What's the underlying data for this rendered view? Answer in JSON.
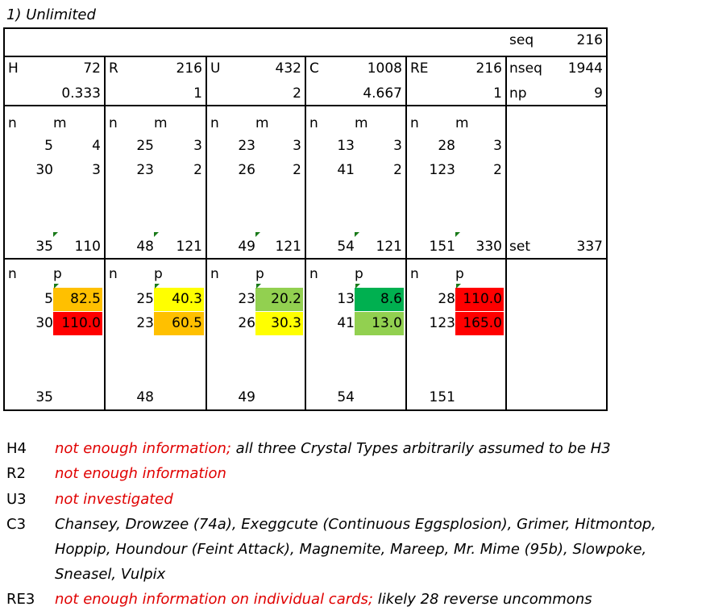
{
  "title": "1) Unlimited",
  "header": {
    "seq_label": "seq",
    "seq_value": "216",
    "nseq_label": "nseq",
    "nseq_value": "1944",
    "np_label": "np",
    "np_value": "9",
    "groups": [
      {
        "label": "H",
        "count": "72",
        "ratio": "0.333"
      },
      {
        "label": "R",
        "count": "216",
        "ratio": "1"
      },
      {
        "label": "U",
        "count": "432",
        "ratio": "2"
      },
      {
        "label": "C",
        "count": "1008",
        "ratio": "4.667"
      },
      {
        "label": "RE",
        "count": "216",
        "ratio": "1"
      }
    ]
  },
  "m_section": {
    "n_header": "n",
    "m_header": "m",
    "set_label": "set",
    "set_value": "337",
    "groups": [
      {
        "rows": [
          [
            "5",
            "4"
          ],
          [
            "30",
            "3"
          ]
        ],
        "total_n": "35",
        "total_m": "110"
      },
      {
        "rows": [
          [
            "25",
            "3"
          ],
          [
            "23",
            "2"
          ]
        ],
        "total_n": "48",
        "total_m": "121"
      },
      {
        "rows": [
          [
            "23",
            "3"
          ],
          [
            "26",
            "2"
          ]
        ],
        "total_n": "49",
        "total_m": "121"
      },
      {
        "rows": [
          [
            "13",
            "3"
          ],
          [
            "41",
            "2"
          ]
        ],
        "total_n": "54",
        "total_m": "121"
      },
      {
        "rows": [
          [
            "28",
            "3"
          ],
          [
            "123",
            "2"
          ]
        ],
        "total_n": "151",
        "total_m": "330"
      }
    ]
  },
  "p_section": {
    "n_header": "n",
    "p_header": "p",
    "groups": [
      {
        "rows": [
          [
            "5",
            "82.5",
            "#ffc000"
          ],
          [
            "30",
            "110.0",
            "#ff0000"
          ]
        ],
        "total_n": "35"
      },
      {
        "rows": [
          [
            "25",
            "40.3",
            "#ffff00"
          ],
          [
            "23",
            "60.5",
            "#ffc000"
          ]
        ],
        "total_n": "48"
      },
      {
        "rows": [
          [
            "23",
            "20.2",
            "#92d050"
          ],
          [
            "26",
            "30.3",
            "#ffff00"
          ]
        ],
        "total_n": "49"
      },
      {
        "rows": [
          [
            "13",
            "8.6",
            "#00b050"
          ],
          [
            "41",
            "13.0",
            "#92d050"
          ]
        ],
        "total_n": "54"
      },
      {
        "rows": [
          [
            "28",
            "110.0",
            "#ff0000"
          ],
          [
            "123",
            "165.0",
            "#ff0000"
          ]
        ],
        "total_n": "151"
      }
    ]
  },
  "notes": [
    {
      "key": "H4",
      "red": "not enough information;",
      "black": "all three Crystal Types arbitrarily assumed to be H3"
    },
    {
      "key": "R2",
      "red": "not enough information",
      "black": ""
    },
    {
      "key": "U3",
      "red": "not investigated",
      "black": ""
    },
    {
      "key": "C3",
      "red": "",
      "black": "Chansey, Drowzee (74a), Exeggcute (Continuous Eggsplosion), Grimer, Hitmontop,",
      "black2": "Hoppip, Houndour (Feint Attack), Magnemite, Mareep, Mr. Mime (95b), Slowpoke,",
      "black3": "Sneasel, Vulpix"
    },
    {
      "key": "RE3",
      "red": "not enough information on individual cards;",
      "black": "likely 28 reverse uncommons"
    }
  ]
}
